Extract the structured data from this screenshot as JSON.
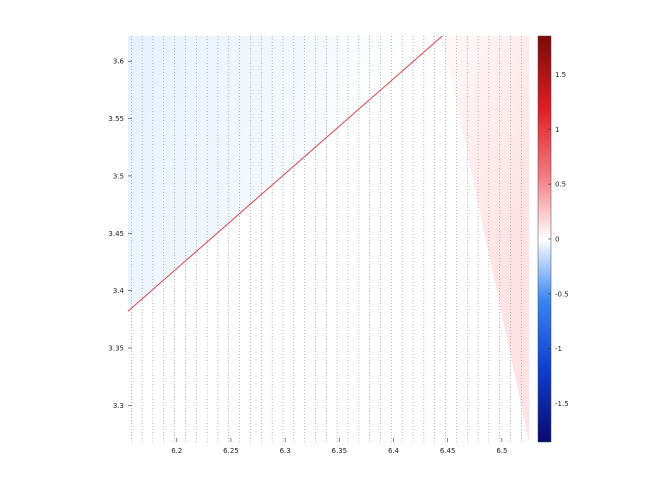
{
  "chart_data": {
    "type": "heatmap",
    "subtype": "vector-field-over-diverging-colormap",
    "title": "",
    "xlabel": "",
    "ylabel": "",
    "xlim": [
      6.155,
      6.525
    ],
    "ylim": [
      3.622,
      3.268
    ],
    "y_axis_reversed": true,
    "x_ticks": [
      6.2,
      6.25,
      6.3,
      6.35,
      6.4,
      6.45,
      6.5
    ],
    "x_tick_labels": [
      "6.2",
      "6.25",
      "6.3",
      "6.35",
      "6.4",
      "6.45",
      "6.5"
    ],
    "y_ticks": [
      3.3,
      3.35,
      3.4,
      3.45,
      3.5,
      3.55,
      3.6
    ],
    "y_tick_labels": [
      "3.3",
      "3.35",
      "3.4",
      "3.45",
      "3.5",
      "3.55",
      "3.6"
    ],
    "grid": true,
    "grid_style": "dotted",
    "colormap": "blue-white-red diverging",
    "colorbar": {
      "range": [
        -1.85,
        1.85
      ],
      "ticks": [
        -1.5,
        -1,
        -0.5,
        0,
        0.5,
        1,
        1.5
      ],
      "tick_labels": [
        "-1.5",
        "-1",
        "-0.5",
        "0",
        "0.5",
        "1",
        "1.5"
      ],
      "placement": "right"
    },
    "field_trend": "values slightly negative (light blue) toward upper-left, slightly positive (light red) toward right",
    "line": {
      "x": [
        6.155,
        6.445
      ],
      "y": [
        3.382,
        3.622
      ],
      "color": "#e0474c"
    },
    "quiver_color": "#3a7fd6",
    "quiver_region": "above the diagonal line",
    "grid_x_start": 6.158,
    "grid_x_step": 0.01,
    "grid_y_start": 3.272,
    "grid_y_step": 0.01
  },
  "colors": {
    "negative": "#f0f6fd",
    "neutral": "#ffffff",
    "positive": "#fde9ea",
    "arrows": "#3a7fd6",
    "line": "#e0474c"
  }
}
